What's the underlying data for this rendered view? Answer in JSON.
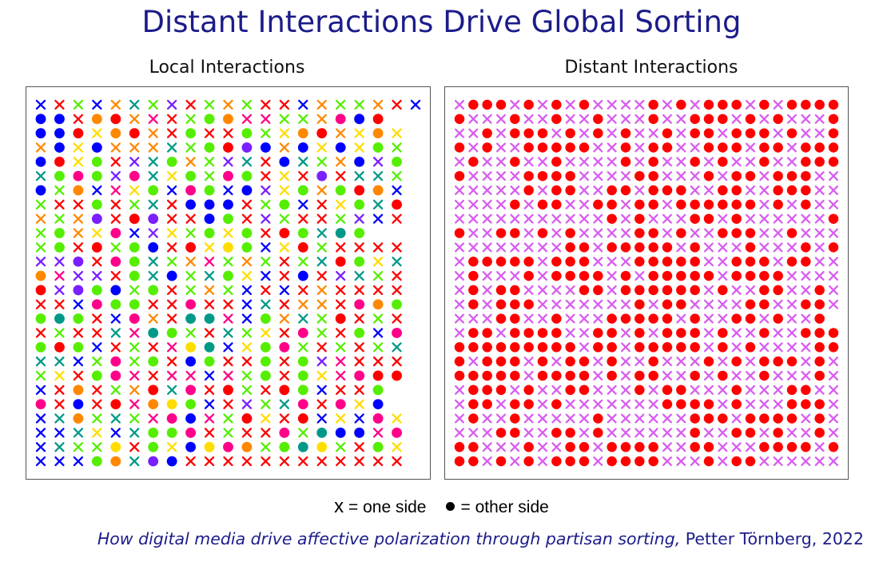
{
  "title": "Distant Interactions Drive Global Sorting",
  "panels": [
    {
      "label": "Local Interactions"
    },
    {
      "label": "Distant Interactions"
    }
  ],
  "legend": {
    "x_symbol": "x",
    "x_text": " = one side",
    "dot_text": "= other side"
  },
  "citation": {
    "work": "How digital media drive affective polarization through partisan sorting,",
    "author_year": " Petter Törnberg, 2022"
  },
  "colors": {
    "title": "#1c1c8a",
    "local_palette": [
      "#ff0000",
      "#ff8800",
      "#ffdd00",
      "#ccff00",
      "#55ee00",
      "#00cc44",
      "#009988",
      "#0000ff",
      "#7a1fff",
      "#cc00dd",
      "#ff0088"
    ],
    "distant_x": "#d85df0",
    "distant_dot": "#ff0000"
  },
  "grids": {
    "local": [
      "bxrxgcbxoxcxgcpxrxgcoxgxrxxxbxoxgxgxoxrcb",
      "bdbdrxodrdoxmxrxgxgdodmxmxgxgxoxmdbdrd",
      "bdbdrdyxodrdoxrxgdrxrxgdgxyxodrdoxyxodyx",
      "oxbdyxbdoxoxoxcxgxgdrdpdbdoxbdyxbdyxgdgx",
      "bdrdyxgdrxpxcxgdoxgxpxcxrxbdcxgxoxbdpxgd",
      "cxgdmdgdpxmdcxyxgdgxmdgdxxyxrxpdxxcxcxgx",
      "bdgxodbxmxyxgdbxmdgdbxbdpxyxgdoxgdrdodb",
      "gxrxrxgdrxgxcxxxbdbdbdrxgxgdbxrxyxgdcxrd",
      "oxgxoxpdrxrdpdrxrxbdgdrxpxgxrxrxgxpxbxrx",
      "gxgdoxyxmdbxpxyxgxgdyxgdrxrdgdcxcdgd",
      "gxgdrxrdgxgdbdrxrdyxydgdbxyxrdgxdrxcxrx",
      "pxpxpdrxmdgdcxgxoxmxgxoxgxrxgxcxrdgdyxcx",
      "odmxpxpxrxgdcxbdgxcxgdyxbxrxbdrxpxcxgxrx",
      "rdpxpdgdbdgxgdrxgxoxgxbxrxbxrxoxdmdcdgx",
      "rxrxbxmdgdgdrxrxmdrxrxbxcxrxoxoxrxmdodgd",
      "gdcdgdxxbxmdoxrxcdcdmxbxgdoxcxgxrdrxgxrx",
      "rxgxrxrxcxmxcdgdgxrxcxgxyxrxmdgxrxgdbxmd",
      "gdrdgdbxrxgxrxmxydcdbxyxgdmdgxrxgxrxgxcx",
      "cxcxbxgxmdgxgdrxbdgdrxrxgdrxgdpxmxrxdcx",
      "gxyxrxgdmdmxrxmxmxbxmxgxgdrxgdyxmxmdrdrd",
      "bxxxodrxgxoxrdcxmdrxrdgxrxxdgdbxrxrxgd",
      "mdxxbdrxxdmxodydgdbxrxpxgxcxmdrxmdyxbd",
      "bxcxodgxcxgxmxmdbdmxgxrdyxrxrdbxyxbxmdyx",
      "bxbxcxyxbxcxgdgdmdrxgxrxxxmdgxcdbdbdmxmd",
      "bxcxgxgxydrxgdyxbdydmdodgxgdcdydgxrxgdyx",
      "bxbxbxgdodcxpdbdxmdxxgxrxgdmdgxodbxyxbd"
    ],
    "distant": [
      "xdddxdxdxdxxxxdxdxdddxdxdddd",
      "dxxxdxxdxxdxxxdxxdddxdxdxxxd",
      "xxdxdddxdxdxdxxdxddxdddxdxxd",
      "dxdxxdddddxxdxddxxdddxddxddd",
      "xdxxdxxdxxxxdxdxxdxdxxdxxddd",
      "dxxxxddddxxxxddxxxdxddxdddxx",
      "xxxxxdxddxxddxdddxxddxxdddxx",
      "xxxxdxddxxddxddxddddddxdxdxx",
      "xxxxxxxxxxxdxdxxxddxdxxxxxxd",
      "dxxddxdxdxxxxddxdxxdddxxdxxx",
      "xxxxxxxxddxdddddxdxxxdxxxdxd",
      "xdddddxdddxxxdddddxxdddxddxx",
      "xdxxxdxddddxdxdddddxddddxxxx",
      "xdxddxxxxddxddddddxdxxddxxdx",
      "xdxdddxxxxxxxdxddxxxxddxxddx",
      "xxxddxxdxxxdddddxdxxddxdxxd",
      "xddxddddxxddxdxdddxdxxdxxddd",
      "dddddddddxddxdddddxdxdxxxxdd",
      "dxdddxdxddxdxxdxxxdxdxdddxdx",
      "dddddxddddxdxddxxdxdxxdxxxdx",
      "xdddxdxxddxxxdxddxxxdxxxddxx",
      "xddxddxdxxxxxxxddddxdxxxdddx",
      "xdxxdxxxxxdxxxxxxdddxddddxdx",
      "xxxddxxddxdxxxxxxdxxddxdxxdx",
      "ddxxxdxxddxddddxxddxxxddddxd",
      "ddxdxdxdddxddddxxxdxddxxxxxx"
    ]
  }
}
